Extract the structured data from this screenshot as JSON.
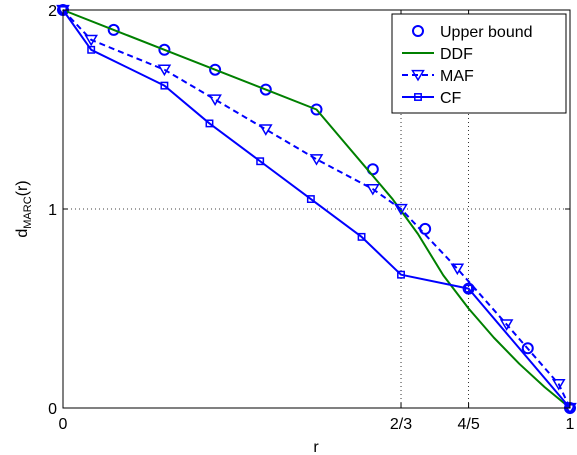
{
  "chart_data": {
    "type": "line",
    "title": "",
    "xlabel": "r",
    "ylabel_main": "d",
    "ylabel_sub": "MARC",
    "ylabel_tail": "(r)",
    "xlim": [
      0,
      1
    ],
    "ylim": [
      0,
      2
    ],
    "x_ticks": [
      {
        "value": 0,
        "label": "0"
      },
      {
        "value": 0.6667,
        "label": "2/3"
      },
      {
        "value": 0.8,
        "label": "4/5"
      },
      {
        "value": 1,
        "label": "1"
      }
    ],
    "y_ticks": [
      {
        "value": 0,
        "label": "0"
      },
      {
        "value": 1,
        "label": "1"
      },
      {
        "value": 2,
        "label": "2"
      }
    ],
    "grid": "dotted",
    "legend_position": "top-right",
    "series": [
      {
        "name": "Upper bound",
        "color": "#0000ff",
        "style": "markers",
        "marker": "circle",
        "x": [
          0,
          0.1,
          0.2,
          0.3,
          0.4,
          0.5,
          0.6111,
          0.7143,
          0.8,
          0.9167,
          1
        ],
        "y": [
          2,
          1.9,
          1.8,
          1.7,
          1.6,
          1.5,
          1.2,
          0.9,
          0.6,
          0.3,
          0
        ]
      },
      {
        "name": "DDF",
        "color": "#008000",
        "style": "solid",
        "marker": "none",
        "x": [
          0,
          0.1,
          0.2,
          0.3,
          0.4,
          0.5,
          0.55,
          0.6,
          0.65,
          0.7,
          0.75,
          0.8,
          0.85,
          0.9,
          0.95,
          1
        ],
        "y": [
          2,
          1.9,
          1.8,
          1.7,
          1.6,
          1.5,
          1.35,
          1.2,
          1.05,
          0.875,
          0.667,
          0.5,
          0.353,
          0.222,
          0.105,
          0
        ]
      },
      {
        "name": "MAF",
        "color": "#0000ff",
        "style": "dashed",
        "marker": "triangle-down",
        "x": [
          0,
          0.0556,
          0.2,
          0.3,
          0.4,
          0.5,
          0.6111,
          0.6667,
          0.7778,
          0.875,
          0.9778,
          1
        ],
        "y": [
          2,
          1.85,
          1.7,
          1.55,
          1.4,
          1.25,
          1.1,
          1.0,
          0.7,
          0.42,
          0.12,
          0
        ]
      },
      {
        "name": "CF",
        "color": "#0000ff",
        "style": "solid",
        "marker": "square",
        "x": [
          0,
          0.0556,
          0.2,
          0.2889,
          0.3889,
          0.4889,
          0.5889,
          0.6667,
          0.8,
          1
        ],
        "y": [
          2,
          1.8,
          1.62,
          1.43,
          1.24,
          1.05,
          0.86,
          0.67,
          0.6,
          0
        ]
      }
    ]
  }
}
